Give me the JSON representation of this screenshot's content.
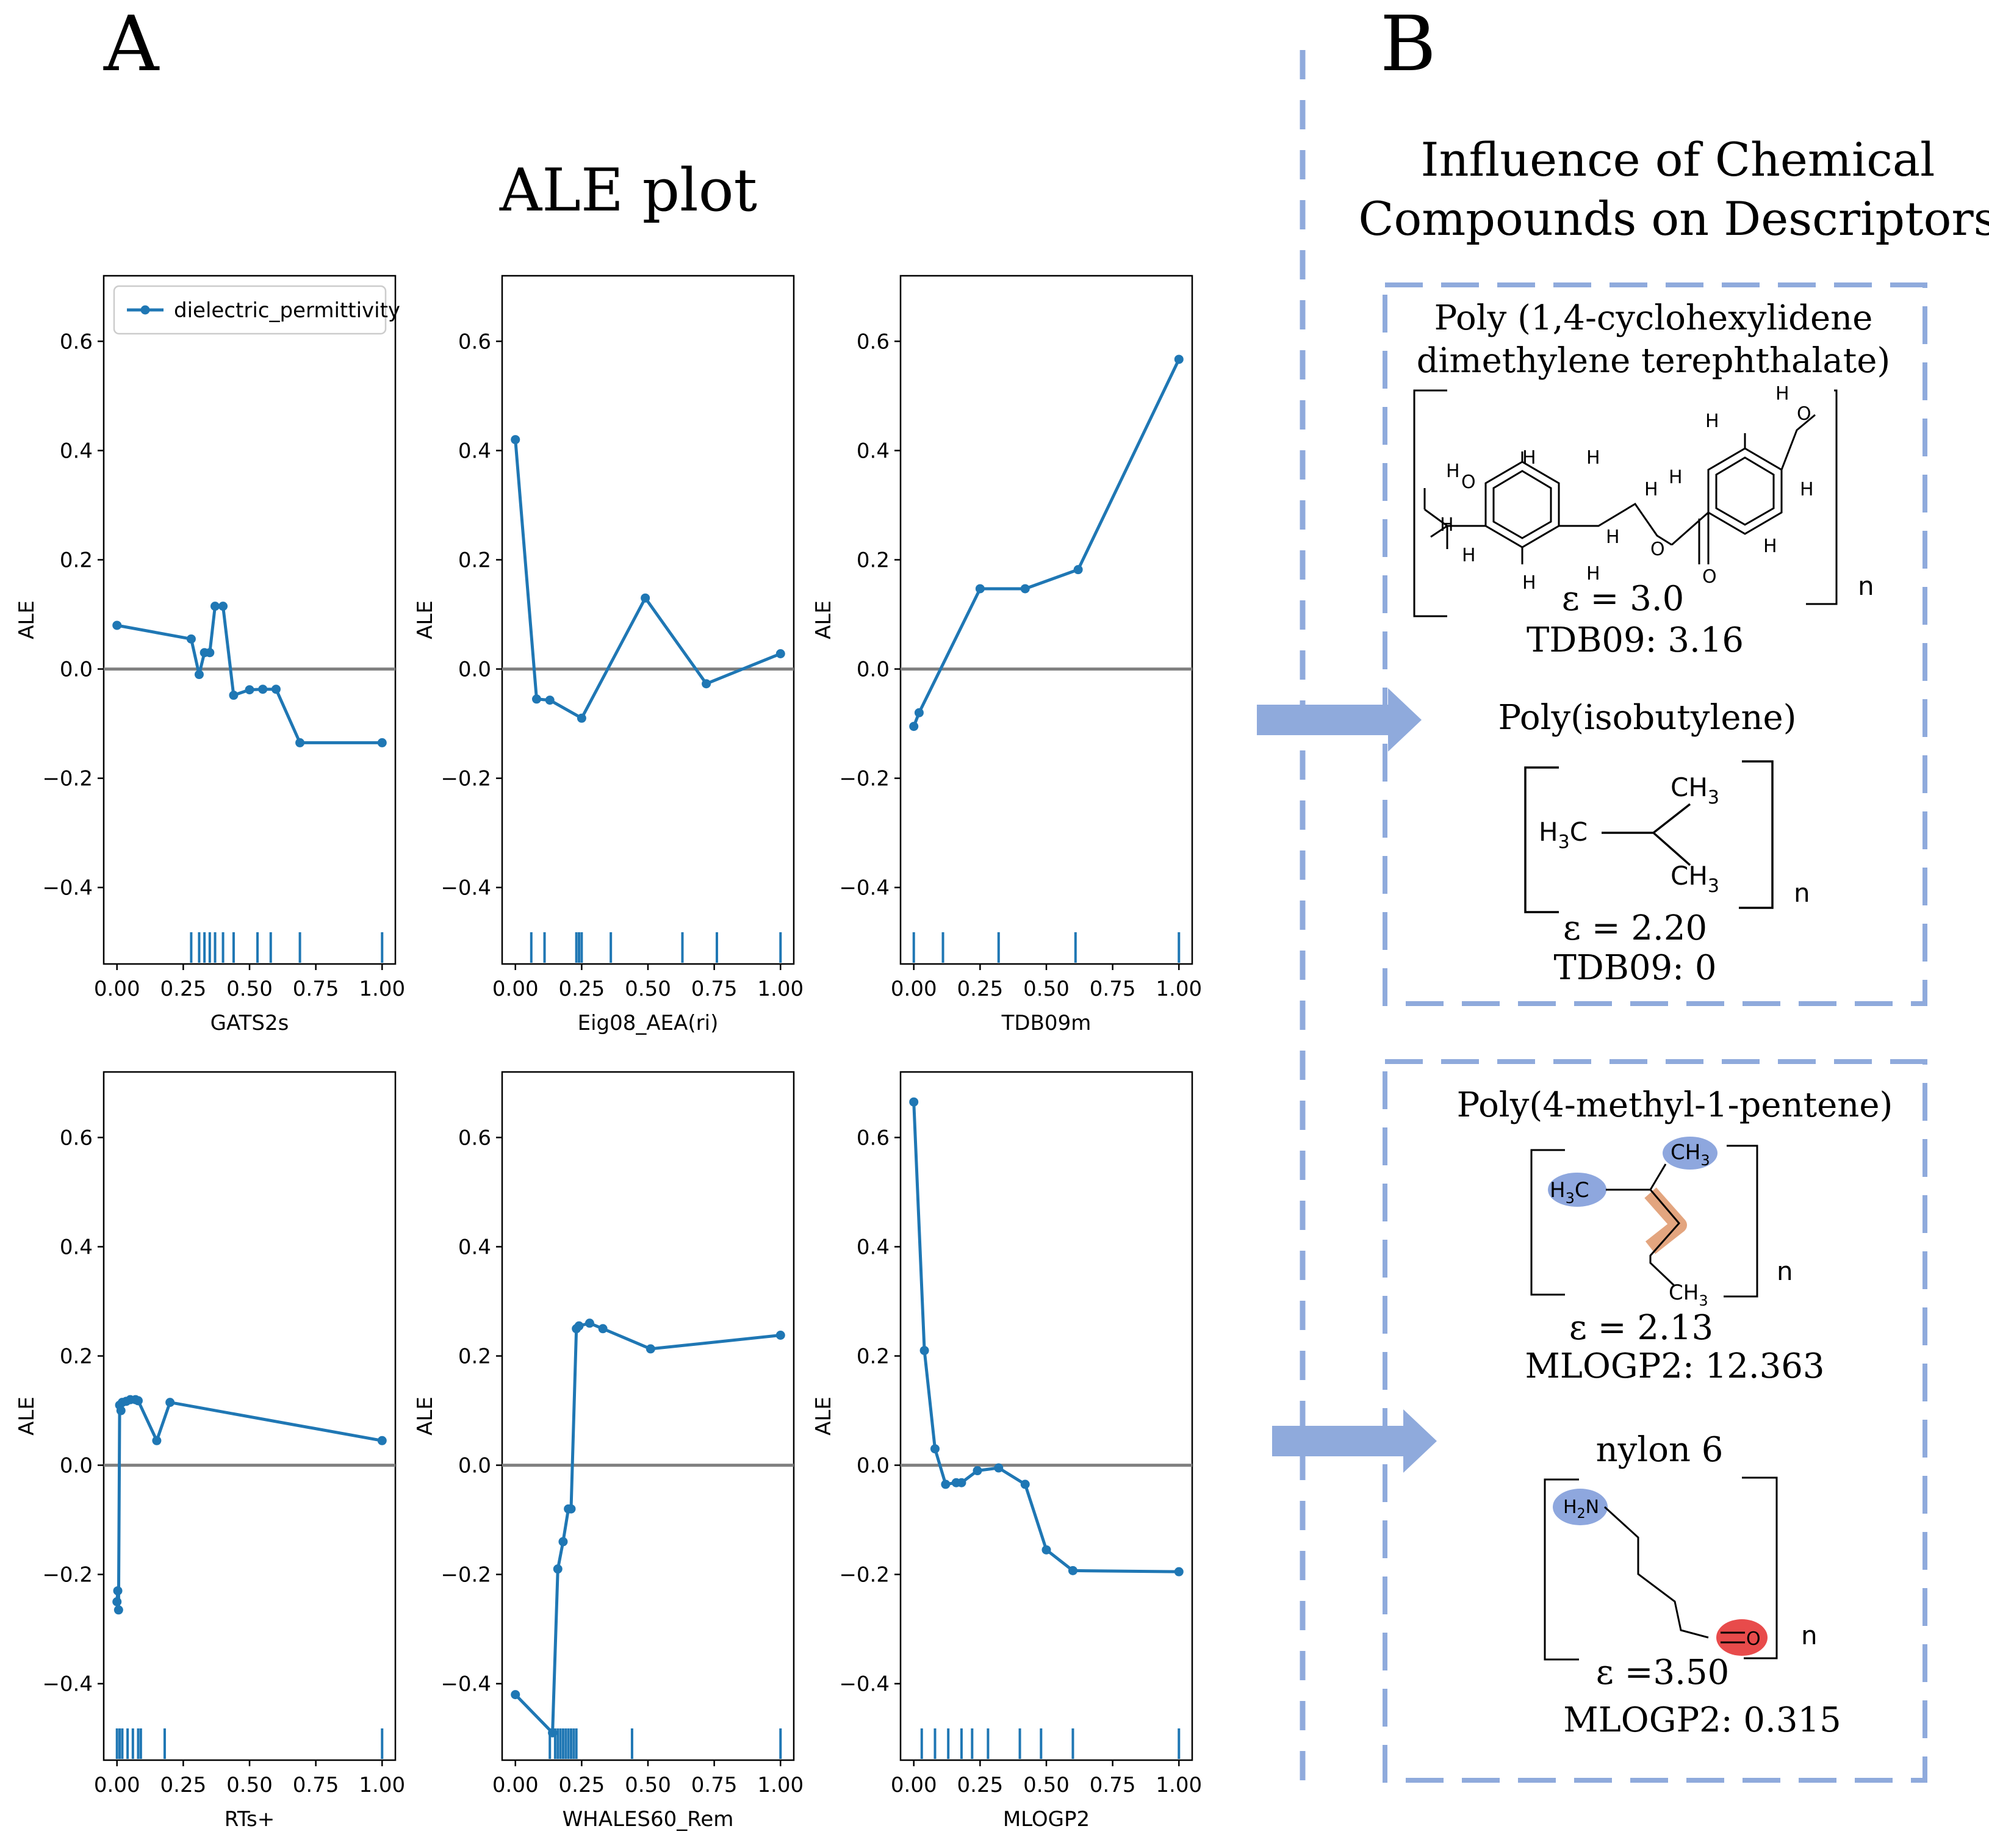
{
  "figure": {
    "panel_a_label": "A",
    "panel_b_label": "B",
    "ale_title": "ALE plot",
    "influence_title_line1": "Influence of Chemical",
    "influence_title_line2": "Compounds on Descriptors"
  },
  "colors": {
    "series": "#1f77b4",
    "zero_line": "#808080",
    "accent": "#8faadc",
    "highlight_blue": "#8ea7de",
    "highlight_orange": "#e3a57f",
    "highlight_red": "#e84b4b"
  },
  "chart_data": [
    {
      "type": "line",
      "xlabel": "GATS2s",
      "ylabel": "ALE",
      "legend": "dielectric_permittivity",
      "legend_position": "top-left",
      "xlim": [
        -0.05,
        1.05
      ],
      "ylim": [
        -0.54,
        0.72
      ],
      "xticks": [
        "0.00",
        "0.25",
        "0.50",
        "0.75",
        "1.00"
      ],
      "yticks": [
        "0.6",
        "0.4",
        "0.2",
        "0.0",
        "−0.2",
        "−0.4"
      ],
      "x": [
        0.0,
        0.28,
        0.31,
        0.33,
        0.35,
        0.37,
        0.4,
        0.44,
        0.5,
        0.55,
        0.6,
        0.69,
        1.0
      ],
      "y": [
        0.08,
        0.055,
        -0.01,
        0.03,
        0.03,
        0.115,
        0.115,
        -0.048,
        -0.038,
        -0.037,
        -0.037,
        -0.135,
        -0.135
      ],
      "rug": [
        0.28,
        0.31,
        0.33,
        0.35,
        0.37,
        0.4,
        0.44,
        0.53,
        0.58,
        0.69,
        1.0
      ]
    },
    {
      "type": "line",
      "xlabel": "Eig08_AEA(ri)",
      "ylabel": "ALE",
      "xlim": [
        -0.05,
        1.05
      ],
      "ylim": [
        -0.54,
        0.72
      ],
      "xticks": [
        "0.00",
        "0.25",
        "0.50",
        "0.75",
        "1.00"
      ],
      "yticks": [
        "0.6",
        "0.4",
        "0.2",
        "0.0",
        "−0.2",
        "−0.4"
      ],
      "x": [
        0.0,
        0.08,
        0.13,
        0.25,
        0.49,
        0.72,
        1.0
      ],
      "y": [
        0.42,
        -0.055,
        -0.057,
        -0.09,
        0.13,
        -0.027,
        0.028
      ],
      "rug": [
        0.06,
        0.11,
        0.23,
        0.24,
        0.25,
        0.36,
        0.63,
        0.76,
        1.0
      ]
    },
    {
      "type": "line",
      "xlabel": "TDB09m",
      "ylabel": "ALE",
      "xlim": [
        -0.05,
        1.05
      ],
      "ylim": [
        -0.54,
        0.72
      ],
      "xticks": [
        "0.00",
        "0.25",
        "0.50",
        "0.75",
        "1.00"
      ],
      "yticks": [
        "0.6",
        "0.4",
        "0.2",
        "0.0",
        "−0.2",
        "−0.4"
      ],
      "x": [
        0.0,
        0.02,
        0.25,
        0.42,
        0.62,
        1.0
      ],
      "y": [
        -0.105,
        -0.08,
        0.147,
        0.147,
        0.182,
        0.567
      ],
      "rug": [
        0.0,
        0.11,
        0.32,
        0.61,
        1.0
      ]
    },
    {
      "type": "line",
      "xlabel": "RTs+",
      "ylabel": "ALE",
      "xlim": [
        -0.05,
        1.05
      ],
      "ylim": [
        -0.54,
        0.72
      ],
      "xticks": [
        "0.00",
        "0.25",
        "0.50",
        "0.75",
        "1.00"
      ],
      "yticks": [
        "0.6",
        "0.4",
        "0.2",
        "0.0",
        "−0.2",
        "−0.4"
      ],
      "x": [
        0.0,
        0.003,
        0.006,
        0.01,
        0.015,
        0.02,
        0.035,
        0.05,
        0.07,
        0.08,
        0.15,
        0.2,
        1.0
      ],
      "y": [
        -0.25,
        -0.23,
        -0.265,
        0.11,
        0.1,
        0.115,
        0.117,
        0.12,
        0.12,
        0.118,
        0.045,
        0.115,
        0.045
      ],
      "rug": [
        0.0,
        0.01,
        0.02,
        0.04,
        0.06,
        0.08,
        0.09,
        0.18,
        1.0
      ]
    },
    {
      "type": "line",
      "xlabel": "WHALES60_Rem",
      "ylabel": "ALE",
      "xlim": [
        -0.05,
        1.05
      ],
      "ylim": [
        -0.54,
        0.72
      ],
      "xticks": [
        "0.00",
        "0.25",
        "0.50",
        "0.75",
        "1.00"
      ],
      "yticks": [
        "0.6",
        "0.4",
        "0.2",
        "0.0",
        "−0.2",
        "−0.4"
      ],
      "x": [
        0.0,
        0.14,
        0.16,
        0.18,
        0.2,
        0.21,
        0.23,
        0.24,
        0.28,
        0.33,
        0.51,
        1.0
      ],
      "y": [
        -0.42,
        -0.49,
        -0.19,
        -0.14,
        -0.08,
        -0.08,
        0.25,
        0.255,
        0.26,
        0.25,
        0.213,
        0.238
      ],
      "rug": [
        0.13,
        0.15,
        0.16,
        0.17,
        0.18,
        0.19,
        0.2,
        0.21,
        0.22,
        0.23,
        0.44,
        1.0
      ]
    },
    {
      "type": "line",
      "xlabel": "MLOGP2",
      "ylabel": "ALE",
      "xlim": [
        -0.05,
        1.05
      ],
      "ylim": [
        -0.54,
        0.72
      ],
      "xticks": [
        "0.00",
        "0.25",
        "0.50",
        "0.75",
        "1.00"
      ],
      "yticks": [
        "0.6",
        "0.4",
        "0.2",
        "0.0",
        "−0.2",
        "−0.4"
      ],
      "x": [
        0.0,
        0.04,
        0.08,
        0.12,
        0.16,
        0.18,
        0.24,
        0.32,
        0.42,
        0.5,
        0.6,
        1.0
      ],
      "y": [
        0.665,
        0.21,
        0.03,
        -0.035,
        -0.032,
        -0.032,
        -0.01,
        -0.005,
        -0.035,
        -0.155,
        -0.193,
        -0.195
      ],
      "rug": [
        0.03,
        0.08,
        0.13,
        0.18,
        0.22,
        0.28,
        0.4,
        0.48,
        0.6,
        1.0
      ]
    }
  ],
  "compounds": {
    "group1": {
      "c1_name_line1": "Poly (1,4-cyclohexylidene",
      "c1_name_line2": "dimethylene terephthalate)",
      "c1_eps": "ε = 3.0",
      "c1_desc": "TDB09: 3.16",
      "c2_name": "Poly(isobutylene)",
      "c2_eps": "ε = 2.20",
      "c2_desc": "TDB09: 0"
    },
    "group2": {
      "c3_name": "Poly(4-methyl-1-pentene)",
      "c3_eps": "ε = 2.13",
      "c3_desc": "MLOGP2: 12.363",
      "c4_name": "nylon 6",
      "c4_eps": "ε =3.50",
      "c4_desc": "MLOGP2: 0.315"
    },
    "repeat_n": "n",
    "atoms": {
      "H": "H",
      "O": "O",
      "CH": "CH",
      "H_sub": "H",
      "C": "C",
      "sub3": "3",
      "sub2": "2",
      "N": "N"
    }
  }
}
